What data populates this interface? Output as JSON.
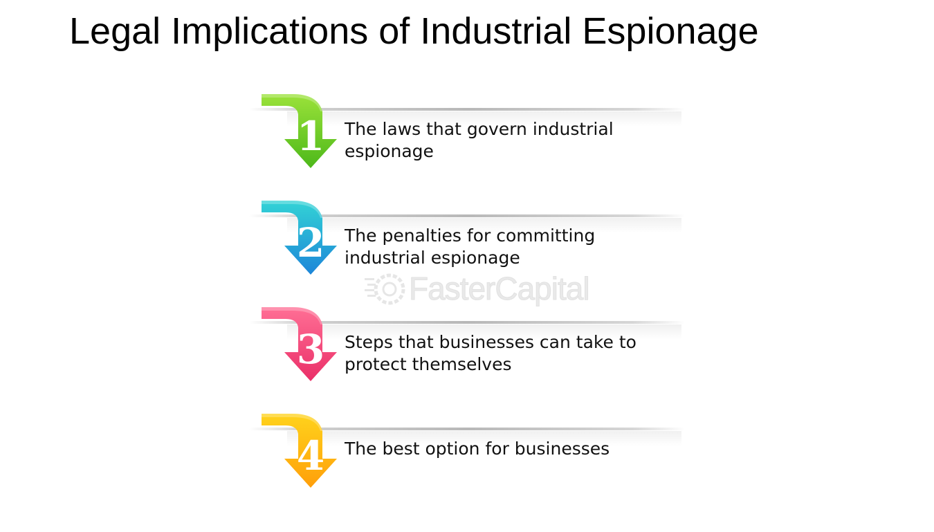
{
  "title": "Legal Implications of Industrial Espionage",
  "steps": [
    {
      "number": "1",
      "label": "The laws that govern industrial espionage",
      "color_light": "#9be23a",
      "color_dark": "#4db81a"
    },
    {
      "number": "2",
      "label": "The penalties for committing industrial espionage",
      "color_light": "#33d3d6",
      "color_dark": "#1d86d8"
    },
    {
      "number": "3",
      "label": "Steps that businesses can take to protect themselves",
      "color_light": "#ff6f95",
      "color_dark": "#ea2f68"
    },
    {
      "number": "4",
      "label": "The best option for businesses",
      "color_light": "#ffd31c",
      "color_dark": "#ff9f0a"
    }
  ],
  "watermark": {
    "text": "FasterCapital"
  }
}
